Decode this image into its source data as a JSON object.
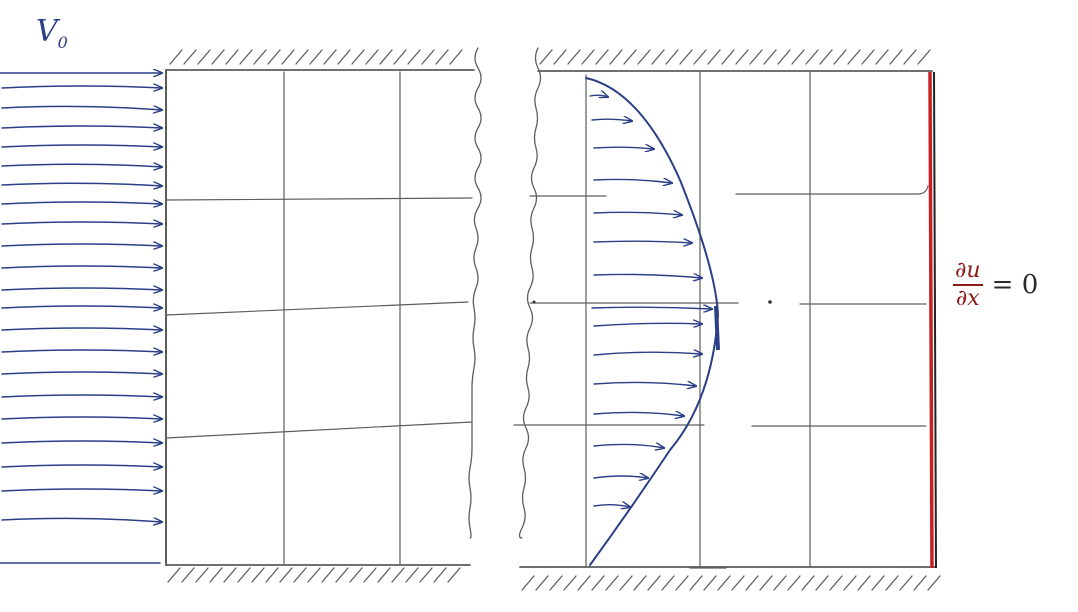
{
  "labels": {
    "inlet_velocity_symbol": "V",
    "inlet_velocity_subscript": "0",
    "outlet_condition_numerator": "∂u",
    "outlet_condition_denominator": "∂x",
    "outlet_condition_rhs": "= 0"
  },
  "colors": {
    "pencil": "#5a5f5a",
    "ink_blue": "#2a3f86",
    "outlet_red": "#c62020",
    "condition_text": "#8b1b1b"
  }
}
